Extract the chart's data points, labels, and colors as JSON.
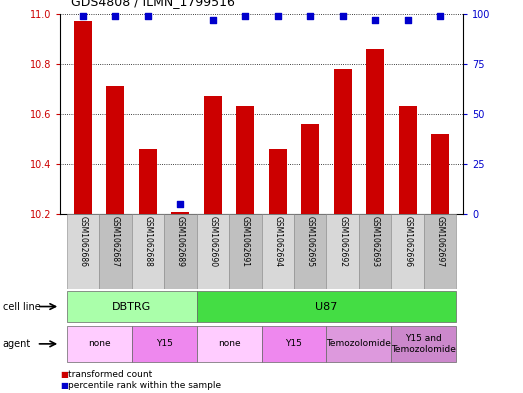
{
  "title": "GDS4808 / ILMN_1799516",
  "samples": [
    "GSM1062686",
    "GSM1062687",
    "GSM1062688",
    "GSM1062689",
    "GSM1062690",
    "GSM1062691",
    "GSM1062694",
    "GSM1062695",
    "GSM1062692",
    "GSM1062693",
    "GSM1062696",
    "GSM1062697"
  ],
  "transformed_count": [
    10.97,
    10.71,
    10.46,
    10.21,
    10.67,
    10.63,
    10.46,
    10.56,
    10.78,
    10.86,
    10.63,
    10.52
  ],
  "percentile_rank": [
    99,
    99,
    99,
    5,
    97,
    99,
    99,
    99,
    99,
    97,
    97,
    99
  ],
  "ylim_left": [
    10.2,
    11.0
  ],
  "ylim_right": [
    0,
    100
  ],
  "yticks_left": [
    10.2,
    10.4,
    10.6,
    10.8,
    11.0
  ],
  "yticks_right": [
    0,
    25,
    50,
    75,
    100
  ],
  "bar_color": "#cc0000",
  "dot_color": "#0000cc",
  "cell_line_groups": [
    {
      "label": "DBTRG",
      "start": 0,
      "end": 3,
      "color": "#aaffaa"
    },
    {
      "label": "U87",
      "start": 4,
      "end": 11,
      "color": "#44dd44"
    }
  ],
  "agent_groups": [
    {
      "label": "none",
      "start": 0,
      "end": 1,
      "color": "#ffccff"
    },
    {
      "label": "Y15",
      "start": 2,
      "end": 3,
      "color": "#ee88ee"
    },
    {
      "label": "none",
      "start": 4,
      "end": 5,
      "color": "#ffccff"
    },
    {
      "label": "Y15",
      "start": 6,
      "end": 7,
      "color": "#ee88ee"
    },
    {
      "label": "Temozolomide",
      "start": 8,
      "end": 9,
      "color": "#dd99dd"
    },
    {
      "label": "Y15 and\nTemozolomide",
      "start": 10,
      "end": 11,
      "color": "#cc88cc"
    }
  ],
  "legend_items": [
    {
      "label": "transformed count",
      "color": "#cc0000"
    },
    {
      "label": "percentile rank within the sample",
      "color": "#0000cc"
    }
  ],
  "bg_color": "#ffffff",
  "tick_label_color_left": "#cc0000",
  "tick_label_color_right": "#0000cc",
  "bar_width": 0.55,
  "sample_col_color_even": "#d8d8d8",
  "sample_col_color_odd": "#c0c0c0",
  "cell_line_label_left": "cell line",
  "agent_label_left": "agent"
}
